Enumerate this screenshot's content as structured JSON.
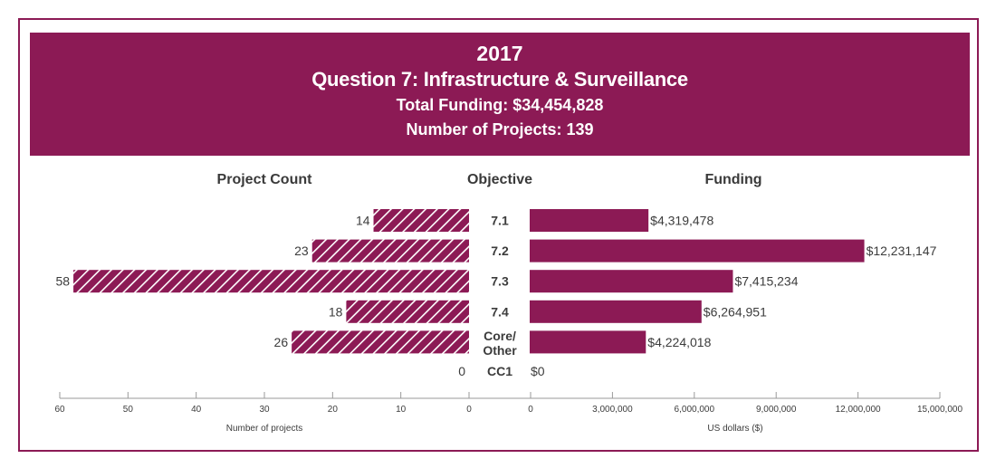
{
  "header": {
    "year": "2017",
    "title": "Question 7: Infrastructure & Surveillance",
    "total_funding": "Total Funding: $34,454,828",
    "num_projects": "Number of Projects: 139"
  },
  "columns": {
    "left": "Project Count",
    "middle": "Objective",
    "right": "Funding"
  },
  "colors": {
    "brand": "#8c1a55",
    "text": "#3c3c3c",
    "axis": "#9a9a9a"
  },
  "chart_data": [
    {
      "type": "bar",
      "orientation": "horizontal",
      "direction": "right-to-left",
      "title": "Project Count",
      "categories": [
        "7.1",
        "7.2",
        "7.3",
        "7.4",
        "Core/Other",
        "CC1"
      ],
      "values": [
        14,
        23,
        58,
        18,
        26,
        0
      ],
      "data_labels": [
        "14",
        "23",
        "58",
        "18",
        "26",
        "0"
      ],
      "xlabel": "Number of projects",
      "xlim": [
        0,
        60
      ],
      "xticks": [
        60,
        50,
        40,
        30,
        20,
        10,
        0
      ],
      "fill": "hatched",
      "grid": false
    },
    {
      "type": "bar",
      "orientation": "horizontal",
      "direction": "left-to-right",
      "title": "Funding",
      "categories": [
        "7.1",
        "7.2",
        "7.3",
        "7.4",
        "Core/Other",
        "CC1"
      ],
      "values": [
        4319478,
        12231147,
        7415234,
        6264951,
        4224018,
        0
      ],
      "data_labels": [
        "$4,319,478",
        "$12,231,147",
        "$7,415,234",
        "$6,264,951",
        "$4,224,018",
        "$0"
      ],
      "xlabel": "US dollars ($)",
      "xlim": [
        0,
        15000000
      ],
      "xticks": [
        "0",
        "3,000,000",
        "6,000,000",
        "9,000,000",
        "12,000,000",
        "15,000,000"
      ],
      "fill": "solid",
      "grid": false
    }
  ],
  "objectives": [
    {
      "label": [
        "7.1"
      ]
    },
    {
      "label": [
        "7.2"
      ]
    },
    {
      "label": [
        "7.3"
      ]
    },
    {
      "label": [
        "7.4"
      ]
    },
    {
      "label": [
        "Core/",
        "Other"
      ]
    },
    {
      "label": [
        "CC1"
      ]
    }
  ]
}
